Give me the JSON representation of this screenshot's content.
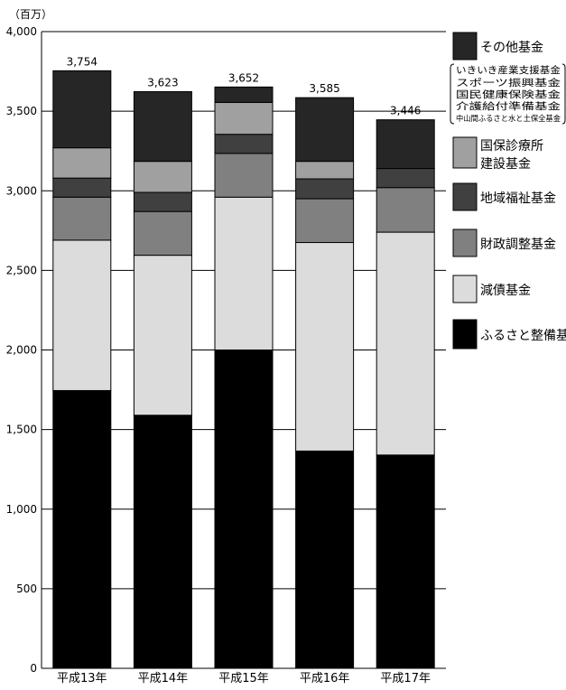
{
  "chart_data": {
    "type": "bar",
    "stacked": true,
    "unit_label": "（百万）",
    "categories": [
      "平成13年",
      "平成14年",
      "平成15年",
      "平成16年",
      "平成17年"
    ],
    "totals": [
      "3,754",
      "3,623",
      "3,652",
      "3,585",
      "3,446"
    ],
    "ylim": [
      0,
      4000
    ],
    "yticks": [
      0,
      500,
      1000,
      1500,
      2000,
      2500,
      3000,
      3500,
      4000
    ],
    "ytick_labels": [
      "0",
      "500",
      "1,000",
      "1,500",
      "2,000",
      "2,500",
      "3,000",
      "3,500",
      "4,000"
    ],
    "grid": true,
    "legend_position": "right",
    "series": [
      {
        "name": "ふるさと整備基金",
        "color": "#000000",
        "values": [
          1745,
          1590,
          2000,
          1365,
          1340
        ]
      },
      {
        "name": "減債基金",
        "color": "#dcdcdc",
        "values": [
          945,
          1005,
          960,
          1310,
          1400
        ]
      },
      {
        "name": "財政調整基金",
        "color": "#808080",
        "values": [
          270,
          275,
          275,
          275,
          280
        ]
      },
      {
        "name": "地域福祉基金",
        "color": "#404040",
        "values": [
          120,
          120,
          120,
          125,
          120
        ]
      },
      {
        "name": "国保診療所建設基金",
        "color": "#a0a0a0",
        "values": [
          190,
          195,
          200,
          110,
          0
        ]
      },
      {
        "name": "その他基金",
        "color": "#262626",
        "values": [
          484,
          438,
          97,
          400,
          306
        ]
      }
    ],
    "legend": [
      {
        "label": "その他基金",
        "color": "#262626",
        "sub": [
          "いきいき産業支援基金",
          "スポーツ振興基金",
          "国民健康保険基金",
          "介護給付準備基金",
          "中山間ふるさと水と土保全基金"
        ]
      },
      {
        "label": "国保診療所建設基金",
        "lines": [
          "国保診療所",
          "建設基金"
        ],
        "color": "#a0a0a0"
      },
      {
        "label": "地域福祉基金",
        "color": "#404040"
      },
      {
        "label": "財政調整基金",
        "color": "#808080"
      },
      {
        "label": "減債基金",
        "color": "#dcdcdc"
      },
      {
        "label": "ふるさと整備基金",
        "color": "#000000"
      }
    ]
  }
}
